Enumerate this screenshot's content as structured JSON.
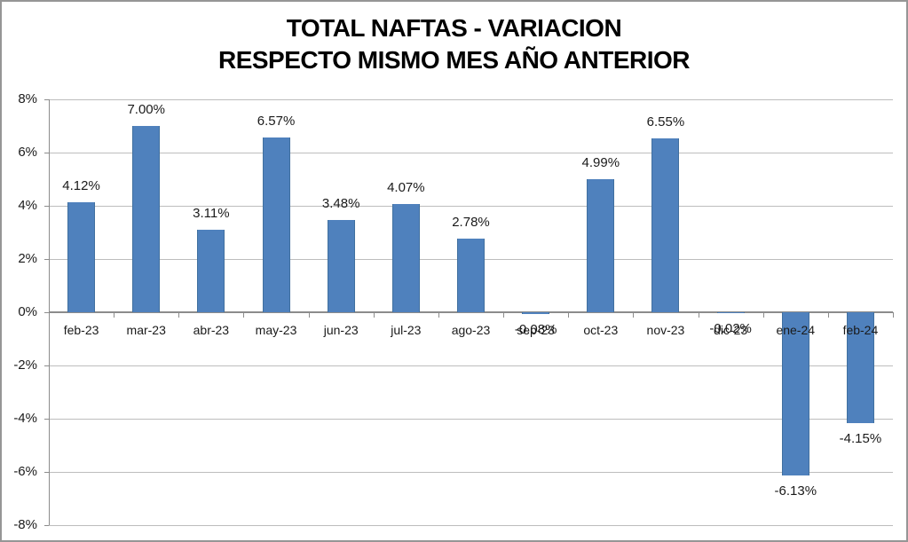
{
  "title": {
    "line1": "TOTAL NAFTAS - VARIACION",
    "line2": "RESPECTO MISMO MES AÑO ANTERIOR"
  },
  "chart_data": {
    "type": "bar",
    "title": "TOTAL NAFTAS - VARIACION RESPECTO MISMO MES AÑO ANTERIOR",
    "categories": [
      "feb-23",
      "mar-23",
      "abr-23",
      "may-23",
      "jun-23",
      "jul-23",
      "ago-23",
      "sep-23",
      "oct-23",
      "nov-23",
      "dic-23",
      "ene-24",
      "feb-24"
    ],
    "values": [
      4.12,
      7.0,
      3.11,
      6.57,
      3.48,
      4.07,
      2.78,
      -0.08,
      4.99,
      6.55,
      -0.02,
      -6.13,
      -4.15
    ],
    "data_labels": [
      "4.12%",
      "7.00%",
      "3.11%",
      "6.57%",
      "3.48%",
      "4.07%",
      "2.78%",
      "-0.08%",
      "4.99%",
      "6.55%",
      "-0.02%",
      "-6.13%",
      "-4.15%"
    ],
    "xlabel": "",
    "ylabel": "",
    "ylim": [
      -8,
      8
    ],
    "y_tick_values": [
      8,
      6,
      4,
      2,
      0,
      -2,
      -4,
      -6,
      -8
    ],
    "y_tick_labels": [
      "8%",
      "6%",
      "4%",
      "2%",
      "0%",
      "-2%",
      "-4%",
      "-6%",
      "-8%"
    ],
    "grid": true,
    "legend": "none",
    "bar_color": "#4F81BD"
  },
  "colors": {
    "bar": "#4F81BD",
    "bar_border": "#41709F",
    "gridline": "#BDBDBD",
    "axis": "#8C8C8C",
    "chart_border": "#969696",
    "title_text": "#000000",
    "label_text": "#1A1A1A",
    "background": "#FFFFFF"
  }
}
